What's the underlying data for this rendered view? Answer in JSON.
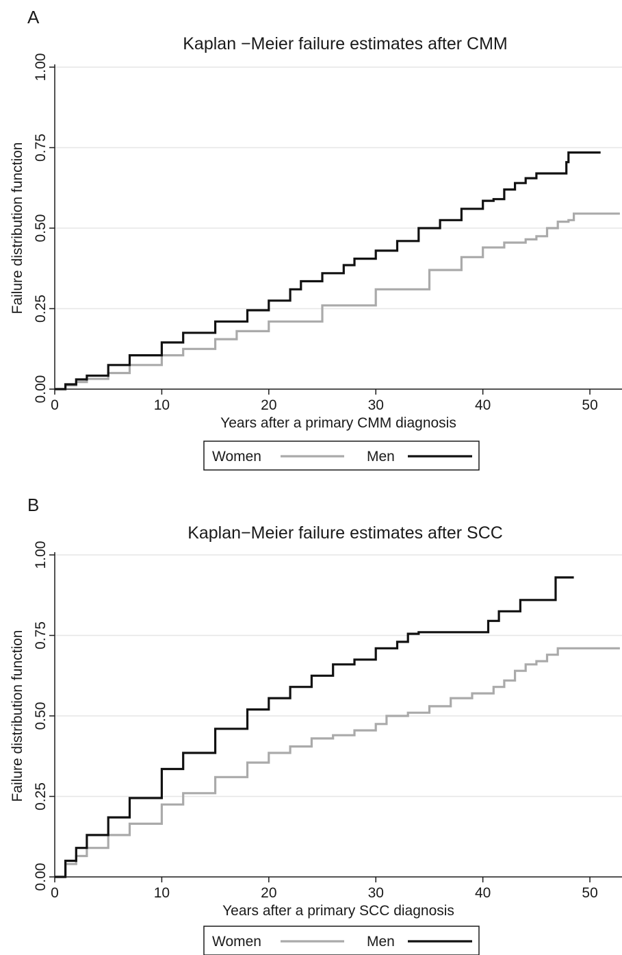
{
  "chart_data": [
    {
      "type": "line",
      "panel_label": "A",
      "title": "Kaplan −Meier failure estimates after CMM",
      "xlabel": "Years after a primary CMM diagnosis",
      "ylabel": "Failure distribution function",
      "xlim": [
        0,
        53
      ],
      "ylim": [
        0,
        1
      ],
      "x_ticks": [
        0,
        10,
        20,
        30,
        40,
        50
      ],
      "x_tick_labels": [
        "0",
        "10",
        "20",
        "30",
        "40",
        "50"
      ],
      "y_ticks": [
        0,
        0.25,
        0.5,
        0.75,
        1.0
      ],
      "y_tick_labels": [
        "0.00",
        "0.25",
        "0.50",
        "0.75",
        "1.00"
      ],
      "grid": true,
      "legend_position": "bottom",
      "series": [
        {
          "name": "Women",
          "color": "#aaaaaa",
          "points": [
            [
              0,
              0
            ],
            [
              1,
              0.012
            ],
            [
              2,
              0.022
            ],
            [
              3,
              0.032
            ],
            [
              5,
              0.05
            ],
            [
              7,
              0.075
            ],
            [
              10,
              0.105
            ],
            [
              12,
              0.125
            ],
            [
              15,
              0.155
            ],
            [
              17,
              0.18
            ],
            [
              20,
              0.21
            ],
            [
              25,
              0.26
            ],
            [
              30,
              0.31
            ],
            [
              35,
              0.37
            ],
            [
              38,
              0.41
            ],
            [
              40,
              0.44
            ],
            [
              42,
              0.455
            ],
            [
              44,
              0.465
            ],
            [
              45,
              0.475
            ],
            [
              46,
              0.5
            ],
            [
              47,
              0.52
            ],
            [
              48,
              0.525
            ],
            [
              48.5,
              0.545
            ],
            [
              52.8,
              0.545
            ]
          ]
        },
        {
          "name": "Men",
          "color": "#111111",
          "points": [
            [
              0,
              0
            ],
            [
              1,
              0.015
            ],
            [
              2,
              0.03
            ],
            [
              3,
              0.042
            ],
            [
              5,
              0.075
            ],
            [
              7,
              0.105
            ],
            [
              10,
              0.145
            ],
            [
              12,
              0.175
            ],
            [
              15,
              0.21
            ],
            [
              18,
              0.245
            ],
            [
              20,
              0.275
            ],
            [
              22,
              0.31
            ],
            [
              23,
              0.335
            ],
            [
              25,
              0.36
            ],
            [
              27,
              0.385
            ],
            [
              28,
              0.405
            ],
            [
              30,
              0.43
            ],
            [
              32,
              0.46
            ],
            [
              34,
              0.5
            ],
            [
              36,
              0.525
            ],
            [
              38,
              0.56
            ],
            [
              40,
              0.585
            ],
            [
              41,
              0.59
            ],
            [
              42,
              0.62
            ],
            [
              43,
              0.64
            ],
            [
              44,
              0.655
            ],
            [
              45,
              0.67
            ],
            [
              47,
              0.67
            ],
            [
              47.8,
              0.705
            ],
            [
              48,
              0.735
            ],
            [
              51,
              0.735
            ]
          ]
        }
      ]
    },
    {
      "type": "line",
      "panel_label": "B",
      "title": "Kaplan−Meier failure estimates after SCC",
      "xlabel": "Years after a primary SCC diagnosis",
      "ylabel": "Failure distribution function",
      "xlim": [
        0,
        53
      ],
      "ylim": [
        0,
        1
      ],
      "x_ticks": [
        0,
        10,
        20,
        30,
        40,
        50
      ],
      "x_tick_labels": [
        "0",
        "10",
        "20",
        "30",
        "40",
        "50"
      ],
      "y_ticks": [
        0,
        0.25,
        0.5,
        0.75,
        1.0
      ],
      "y_tick_labels": [
        "0.00",
        "0.25",
        "0.50",
        "0.75",
        "1.00"
      ],
      "grid": true,
      "legend_position": "bottom",
      "series": [
        {
          "name": "Women",
          "color": "#aaaaaa",
          "points": [
            [
              0,
              0
            ],
            [
              1,
              0.04
            ],
            [
              2,
              0.065
            ],
            [
              3,
              0.09
            ],
            [
              5,
              0.13
            ],
            [
              7,
              0.165
            ],
            [
              10,
              0.225
            ],
            [
              12,
              0.26
            ],
            [
              15,
              0.31
            ],
            [
              18,
              0.355
            ],
            [
              20,
              0.385
            ],
            [
              22,
              0.405
            ],
            [
              24,
              0.43
            ],
            [
              26,
              0.44
            ],
            [
              28,
              0.455
            ],
            [
              30,
              0.475
            ],
            [
              31,
              0.5
            ],
            [
              33,
              0.51
            ],
            [
              35,
              0.53
            ],
            [
              37,
              0.555
            ],
            [
              39,
              0.57
            ],
            [
              41,
              0.59
            ],
            [
              42,
              0.61
            ],
            [
              43,
              0.64
            ],
            [
              44,
              0.66
            ],
            [
              45,
              0.67
            ],
            [
              46,
              0.69
            ],
            [
              47,
              0.71
            ],
            [
              52.8,
              0.71
            ]
          ]
        },
        {
          "name": "Men",
          "color": "#111111",
          "points": [
            [
              0,
              0
            ],
            [
              1,
              0.05
            ],
            [
              2,
              0.09
            ],
            [
              3,
              0.13
            ],
            [
              5,
              0.185
            ],
            [
              7,
              0.245
            ],
            [
              10,
              0.335
            ],
            [
              12,
              0.385
            ],
            [
              15,
              0.46
            ],
            [
              18,
              0.52
            ],
            [
              20,
              0.555
            ],
            [
              22,
              0.59
            ],
            [
              24,
              0.625
            ],
            [
              26,
              0.66
            ],
            [
              28,
              0.675
            ],
            [
              30,
              0.71
            ],
            [
              32,
              0.73
            ],
            [
              33,
              0.755
            ],
            [
              34,
              0.76
            ],
            [
              40.5,
              0.76
            ],
            [
              40.5,
              0.795
            ],
            [
              41.5,
              0.795
            ],
            [
              41.5,
              0.825
            ],
            [
              43.5,
              0.825
            ],
            [
              43.5,
              0.86
            ],
            [
              46.8,
              0.86
            ],
            [
              46.8,
              0.93
            ],
            [
              48.5,
              0.93
            ]
          ]
        }
      ]
    }
  ]
}
